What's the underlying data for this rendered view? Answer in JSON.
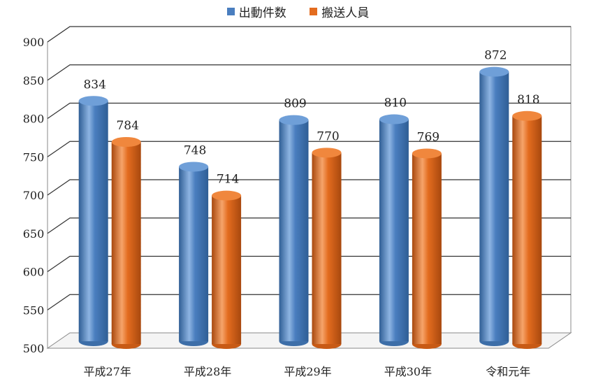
{
  "chart_data": {
    "type": "bar",
    "categories": [
      "平成27年",
      "平成28年",
      "平成29年",
      "平成30年",
      "令和元年"
    ],
    "series": [
      {
        "name": "出動件数",
        "values": [
          834,
          748,
          809,
          810,
          872
        ],
        "color": "#4a7ebf"
      },
      {
        "name": "搬送人員",
        "values": [
          784,
          714,
          770,
          769,
          818
        ],
        "color": "#e36c1f"
      }
    ],
    "ylim": [
      500,
      900
    ],
    "yticks": [
      500,
      550,
      600,
      650,
      700,
      750,
      800,
      850,
      900
    ],
    "grid": true,
    "legend_position": "top",
    "style": "3d-cylinder"
  }
}
